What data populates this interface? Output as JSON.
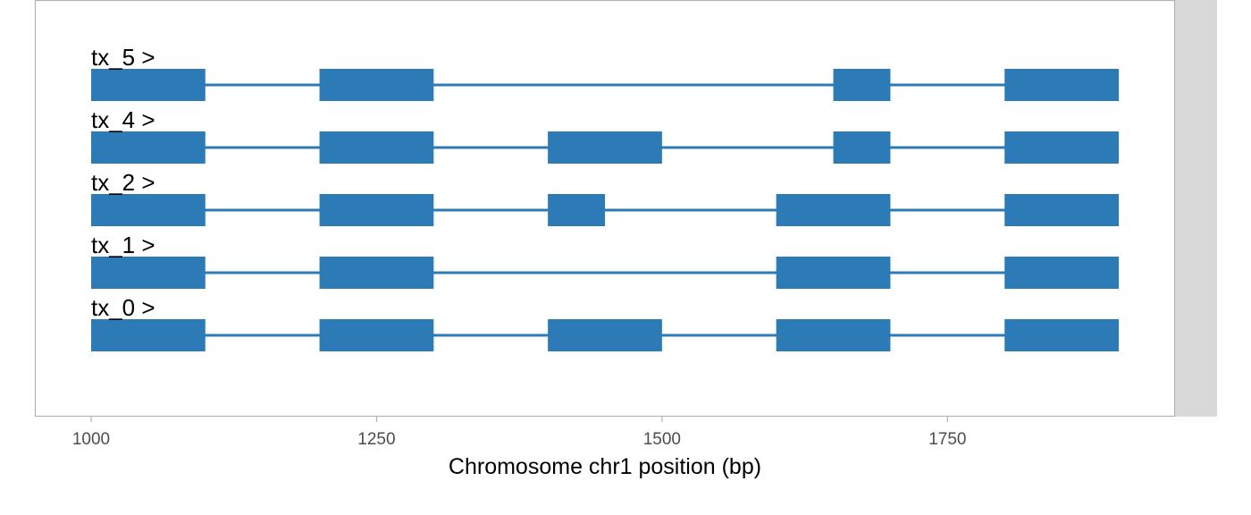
{
  "chart_data": {
    "type": "gene-structure",
    "xlabel": "Chromosome chr1 position (bp)",
    "xlim": [
      950,
      1965
    ],
    "x_ticks": [
      1000,
      1250,
      1500,
      1750
    ],
    "tick_labels": [
      "1000",
      "1250",
      "1500",
      "1750"
    ],
    "grid": false,
    "strand_marker": ">",
    "colors": {
      "exon": "#2c7bb6",
      "intron": "#2c7bb6",
      "panel_border": "#b3b3b3",
      "side_strip": "#d9d9d9",
      "tick_text": "#4d4d4d"
    },
    "transcripts": [
      {
        "id": "tx_5",
        "label": "tx_5 >",
        "start": 1000,
        "end": 1900,
        "exons": [
          [
            1000,
            1100
          ],
          [
            1200,
            1300
          ],
          [
            1650,
            1700
          ],
          [
            1800,
            1900
          ]
        ]
      },
      {
        "id": "tx_4",
        "label": "tx_4 >",
        "start": 1000,
        "end": 1900,
        "exons": [
          [
            1000,
            1100
          ],
          [
            1200,
            1300
          ],
          [
            1400,
            1500
          ],
          [
            1650,
            1700
          ],
          [
            1800,
            1900
          ]
        ]
      },
      {
        "id": "tx_2",
        "label": "tx_2 >",
        "start": 1000,
        "end": 1900,
        "exons": [
          [
            1000,
            1100
          ],
          [
            1200,
            1300
          ],
          [
            1400,
            1450
          ],
          [
            1600,
            1700
          ],
          [
            1800,
            1900
          ]
        ]
      },
      {
        "id": "tx_1",
        "label": "tx_1 >",
        "start": 1000,
        "end": 1900,
        "exons": [
          [
            1000,
            1100
          ],
          [
            1200,
            1300
          ],
          [
            1600,
            1700
          ],
          [
            1800,
            1900
          ]
        ]
      },
      {
        "id": "tx_0",
        "label": "tx_0 >",
        "start": 1000,
        "end": 1900,
        "exons": [
          [
            1000,
            1100
          ],
          [
            1200,
            1300
          ],
          [
            1400,
            1500
          ],
          [
            1600,
            1700
          ],
          [
            1800,
            1900
          ]
        ]
      }
    ]
  }
}
